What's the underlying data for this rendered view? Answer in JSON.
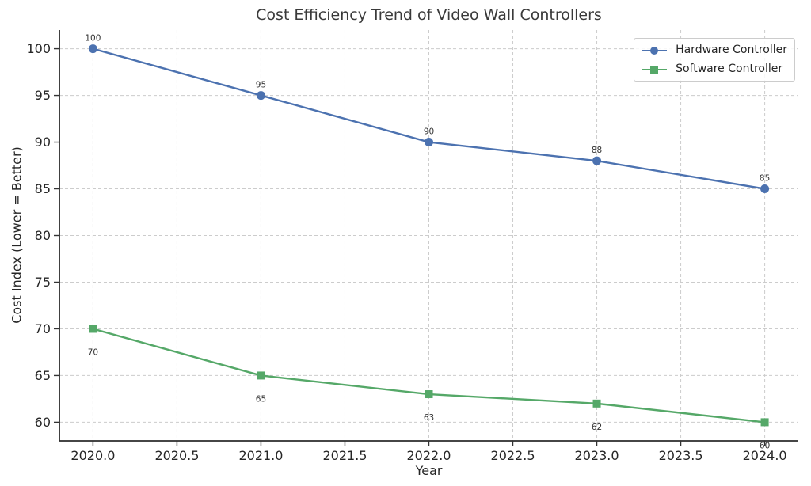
{
  "chart_data": {
    "type": "line",
    "title": "Cost Efficiency Trend of Video Wall Controllers",
    "xlabel": "Year",
    "ylabel": "Cost Index (Lower = Better)",
    "x": [
      2020,
      2021,
      2022,
      2023,
      2024
    ],
    "series": [
      {
        "name": "Hardware Controller",
        "values": [
          100,
          95,
          90,
          88,
          85
        ],
        "color": "#4c72b0",
        "marker": "circle",
        "label_position": "above"
      },
      {
        "name": "Software Controller",
        "values": [
          70,
          65,
          63,
          62,
          60
        ],
        "color": "#55a868",
        "marker": "square",
        "label_position": "below"
      }
    ],
    "xlim": [
      2019.8,
      2024.2
    ],
    "ylim": [
      58,
      102
    ],
    "x_tick_values": [
      2020,
      2020.5,
      2021,
      2021.5,
      2022,
      2022.5,
      2023,
      2023.5,
      2024
    ],
    "x_tick_labels": [
      "2020.0",
      "2020.5",
      "2021.0",
      "2021.5",
      "2022.0",
      "2022.5",
      "2023.0",
      "2023.5",
      "2024.0"
    ],
    "y_tick_values": [
      60,
      65,
      70,
      75,
      80,
      85,
      90,
      95,
      100
    ],
    "y_tick_labels": [
      "60",
      "65",
      "70",
      "75",
      "80",
      "85",
      "90",
      "95",
      "100"
    ],
    "grid": "dashed",
    "legend_position": "upper-right",
    "colors": {
      "grid": "#cccccc",
      "spine": "#2b2b2b",
      "tick": "#333333",
      "tick_label": "#262626",
      "title": "#3a3a3a",
      "data_label": "#333333",
      "background": "#ffffff"
    }
  }
}
